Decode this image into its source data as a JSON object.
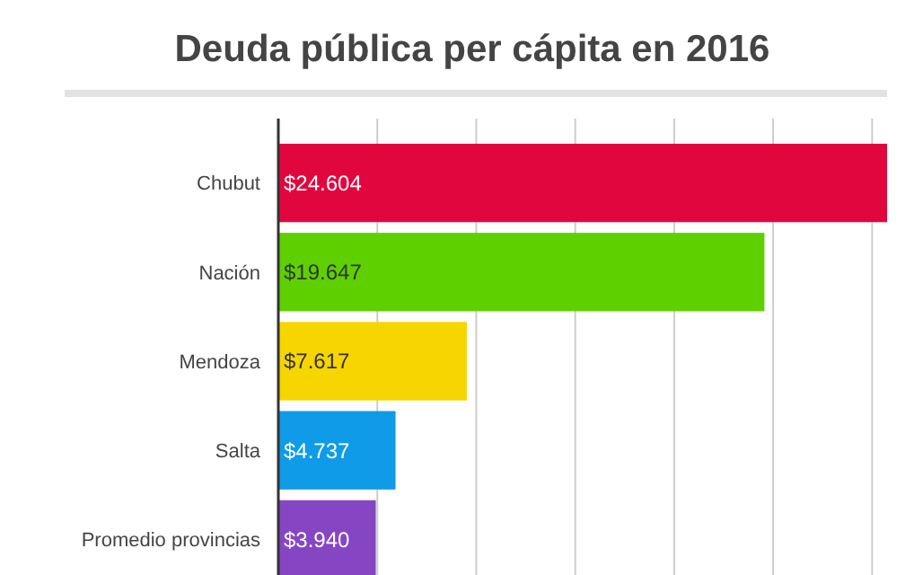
{
  "chart_data": {
    "type": "bar",
    "orientation": "horizontal",
    "title": "Deuda pública per cápita en 2016",
    "categories": [
      "Chubut",
      "Nación",
      "Mendoza",
      "Salta",
      "Promedio provincias"
    ],
    "values": [
      24604,
      19647,
      7617,
      4737,
      3940
    ],
    "colors": [
      "#e2063f",
      "#5ed000",
      "#f6d500",
      "#0f9be8",
      "#8646c4"
    ],
    "value_labels": [
      "$24.604",
      "$19.647",
      "$7.617",
      "$4.737",
      "$3.940"
    ],
    "xlim": [
      0,
      24604
    ],
    "xticks": [
      {
        "value": 0,
        "label": null
      },
      {
        "value": 4000,
        "label": null
      },
      {
        "value": 8000,
        "label": null
      },
      {
        "value": 12000,
        "label": null
      },
      {
        "value": 16000,
        "label": null
      },
      {
        "value": 20000,
        "label": null
      },
      {
        "value": 24000,
        "label": null
      }
    ],
    "grid": "x",
    "tick_labels": "y"
  }
}
